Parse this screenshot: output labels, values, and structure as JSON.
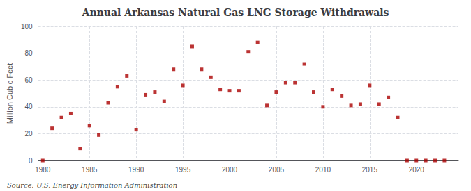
{
  "chart_data": {
    "type": "scatter",
    "title": "Annual Arkansas Natural Gas LNG Storage Withdrawals",
    "ylabel": "Million Cubic Feet",
    "annotation": "Source: U.S. Energy Information Administration",
    "x": [
      1980,
      1981,
      1982,
      1983,
      1984,
      1985,
      1986,
      1987,
      1988,
      1989,
      1990,
      1991,
      1992,
      1993,
      1994,
      1995,
      1996,
      1997,
      1998,
      1999,
      2000,
      2001,
      2002,
      2003,
      2004,
      2005,
      2006,
      2007,
      2008,
      2009,
      2010,
      2011,
      2012,
      2013,
      2014,
      2015,
      2016,
      2017,
      2018,
      2019,
      2020,
      2021,
      2022,
      2023
    ],
    "values": [
      0,
      24,
      32,
      35,
      9,
      26,
      19,
      43,
      55,
      63,
      23,
      49,
      51,
      44,
      68,
      56,
      85,
      68,
      62,
      53,
      52,
      52,
      81,
      88,
      41,
      51,
      58,
      58,
      72,
      51,
      40,
      53,
      48,
      41,
      42,
      56,
      42,
      47,
      32,
      0,
      0,
      0,
      0,
      0
    ],
    "color": "#aa0000",
    "marker": "square",
    "xlim": [
      1979.5,
      2024.5
    ],
    "xticks": [
      1980,
      1985,
      1990,
      1995,
      2000,
      2005,
      2010,
      2015,
      2020
    ],
    "ylim": [
      0,
      100
    ],
    "yticks": [
      0,
      20,
      40,
      60,
      80,
      100
    ],
    "grid": true
  }
}
